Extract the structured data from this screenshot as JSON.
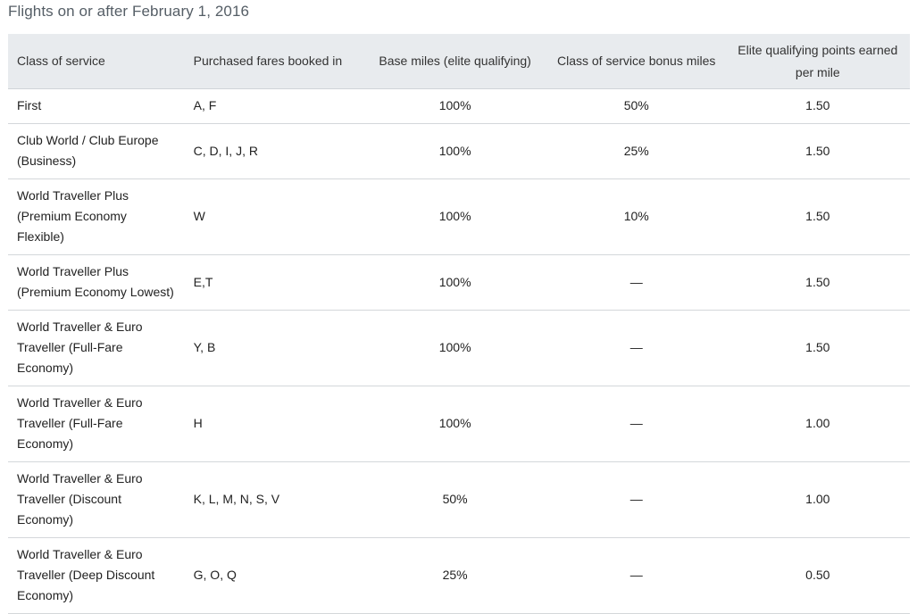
{
  "title": "Flights on or after February 1, 2016",
  "headers": [
    "Class of service",
    "Purchased fares booked in",
    "Base miles (elite qualifying)",
    "Class of service bonus miles",
    "Elite qualifying points earned per mile"
  ],
  "rows": [
    {
      "cls": "First",
      "fares": "A, F",
      "base": "100%",
      "bonus": "50%",
      "points": "1.50"
    },
    {
      "cls": "Club World / Club Europe (Business)",
      "fares": "C, D, I, J, R",
      "base": "100%",
      "bonus": "25%",
      "points": "1.50"
    },
    {
      "cls": "World Traveller Plus (Premium Economy Flexible)",
      "fares": "W",
      "base": "100%",
      "bonus": "10%",
      "points": "1.50"
    },
    {
      "cls": "World Traveller Plus (Premium Economy Lowest)",
      "fares": "E,T",
      "base": "100%",
      "bonus": "—",
      "points": "1.50"
    },
    {
      "cls": "World Traveller & Euro Traveller (Full-Fare Economy)",
      "fares": "Y, B",
      "base": "100%",
      "bonus": "—",
      "points": "1.50"
    },
    {
      "cls": "World Traveller & Euro Traveller (Full-Fare Economy)",
      "fares": "H",
      "base": "100%",
      "bonus": "—",
      "points": "1.00"
    },
    {
      "cls": "World Traveller & Euro Traveller (Discount Economy)",
      "fares": "K, L, M, N, S, V",
      "base": "50%",
      "bonus": "—",
      "points": "1.00"
    },
    {
      "cls": "World Traveller & Euro Traveller (Deep Discount Economy)",
      "fares": "G, O, Q",
      "base": "25%",
      "bonus": "—",
      "points": "0.50"
    }
  ]
}
